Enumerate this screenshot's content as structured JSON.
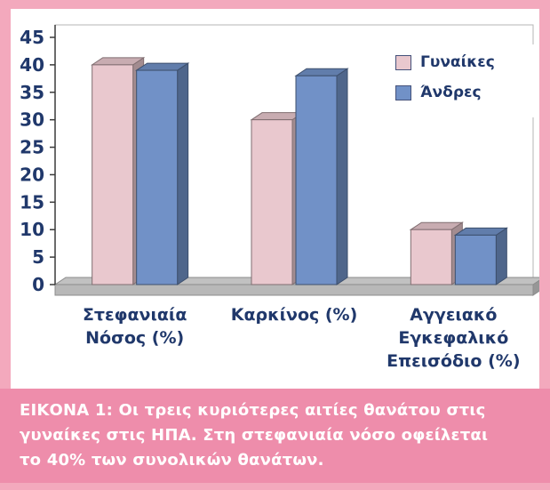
{
  "figure": {
    "caption": {
      "lines": [
        "ΕΙΚΟΝΑ 1: Οι τρεις κυριότερες αιτίες θανάτου στις",
        "γυναίκες στις ΗΠΑ. Στη στεφανιαία νόσο οφείλεται",
        "το 40% των συνολικών θανάτων."
      ]
    },
    "colors": {
      "frame_pink": "#f3a9bd",
      "caption_pink": "#ee8dab",
      "caption_text": "#ffffff",
      "label_navy": "#20386b",
      "axis_gray": "#3a3a3a",
      "plot_border_gray": "#b5b5b5",
      "floor_gray": "#b8b8b8"
    }
  },
  "chart_data": {
    "type": "bar",
    "style": "3d",
    "title": "",
    "xlabel": "",
    "ylabel": "",
    "categories": [
      "Στεφανιαία Νόσος (%)",
      "Καρκίνος (%)",
      "Αγγειακό Εγκεφαλικό Επεισόδιο (%)"
    ],
    "categories_display": [
      "Στεφανιαία\nΝόσος (%)",
      "Καρκίνος (%)",
      "Αγγειακό\nΕγκεφαλικό\nΕπεισόδιο (%)"
    ],
    "series": [
      {
        "name": "Γυναίκες",
        "color": "#e9c8ce",
        "values": [
          40,
          30,
          10
        ]
      },
      {
        "name": "Άνδρες",
        "color": "#7191c7",
        "values": [
          39,
          38,
          9
        ]
      }
    ],
    "ylim": [
      0,
      45
    ],
    "ytick_step": 5,
    "yticks": [
      0,
      5,
      10,
      15,
      20,
      25,
      30,
      35,
      40,
      45
    ],
    "grid": false,
    "legend_position": "top-right"
  }
}
